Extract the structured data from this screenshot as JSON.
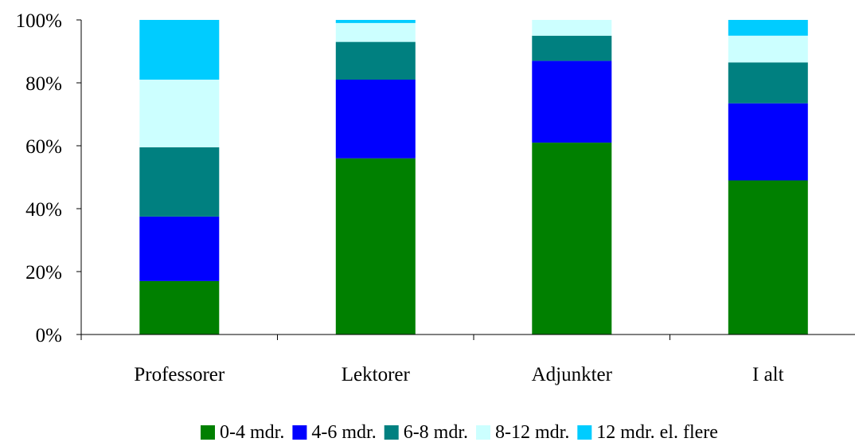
{
  "chart_data": {
    "type": "bar",
    "stacked": true,
    "percent_scale": true,
    "categories": [
      "Professorer",
      "Lektorer",
      "Adjunkter",
      "I alt"
    ],
    "ylim": [
      0,
      100
    ],
    "yticks": [
      "0%",
      "20%",
      "40%",
      "60%",
      "80%",
      "100%"
    ],
    "grid": false,
    "legend_position": "bottom",
    "series": [
      {
        "name": "0-4 mdr.",
        "color": "#008000",
        "values": [
          17,
          56,
          61,
          49
        ]
      },
      {
        "name": "4-6 mdr.",
        "color": "#0000ff",
        "values": [
          20.5,
          25,
          26,
          24.5
        ]
      },
      {
        "name": "6-8 mdr.",
        "color": "#008080",
        "values": [
          22,
          12,
          8,
          13
        ]
      },
      {
        "name": "8-12 mdr.",
        "color": "#ccffff",
        "values": [
          21.5,
          6,
          5,
          8.5
        ]
      },
      {
        "name": "12 mdr. el. flere",
        "color": "#00ccff",
        "values": [
          19,
          1,
          0,
          5
        ]
      }
    ]
  }
}
